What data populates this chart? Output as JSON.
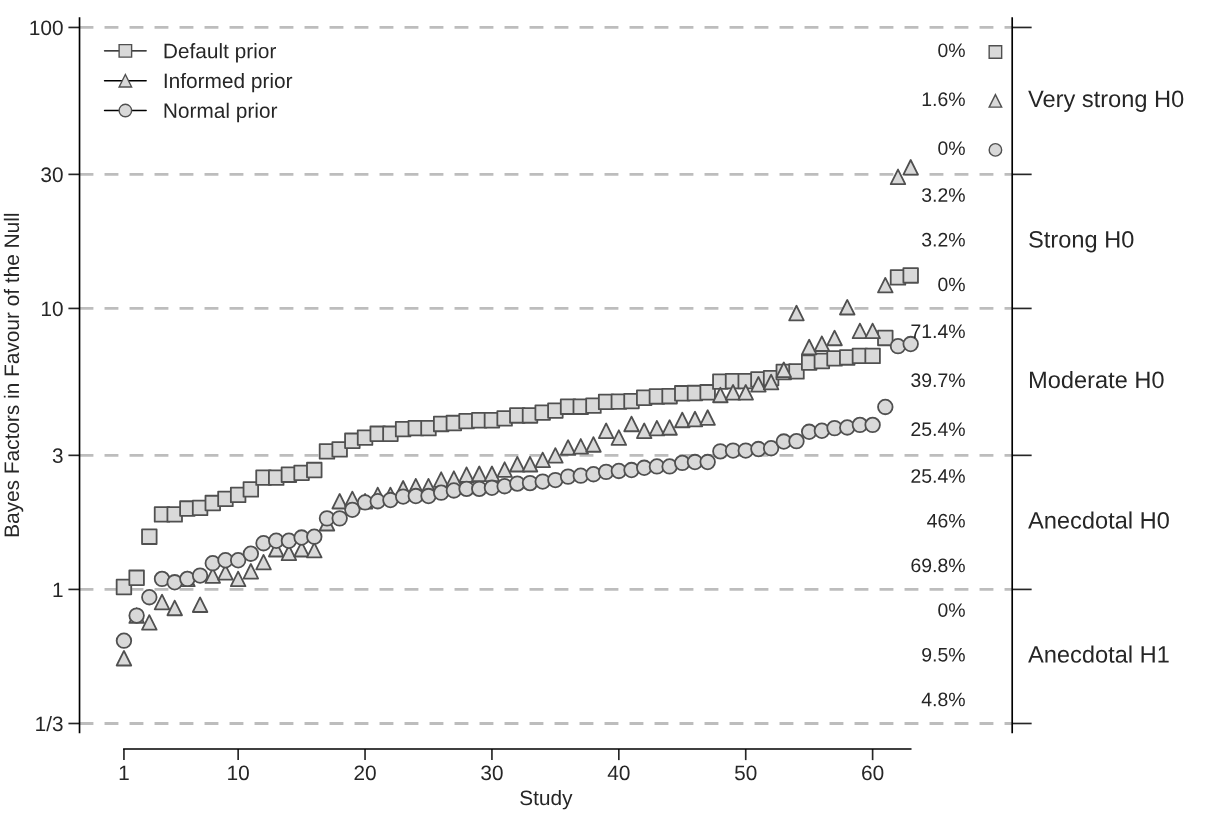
{
  "chart_data": {
    "type": "scatter",
    "xlabel": "Study",
    "ylabel": "Bayes Factors in Favour of the Null",
    "x": [
      1,
      2,
      3,
      4,
      5,
      6,
      7,
      8,
      9,
      10,
      11,
      12,
      13,
      14,
      15,
      16,
      17,
      18,
      19,
      20,
      21,
      22,
      23,
      24,
      25,
      26,
      27,
      28,
      29,
      30,
      31,
      32,
      33,
      34,
      35,
      36,
      37,
      38,
      39,
      40,
      41,
      42,
      43,
      44,
      45,
      46,
      47,
      48,
      49,
      50,
      51,
      52,
      53,
      54,
      55,
      56,
      57,
      58,
      59,
      60,
      61,
      62,
      63
    ],
    "series": [
      {
        "name": "Default prior",
        "color": "#d9d9d9",
        "marker": "square",
        "values": [
          1.02,
          1.1,
          1.54,
          1.85,
          1.85,
          1.94,
          1.95,
          2.03,
          2.1,
          2.17,
          2.27,
          2.5,
          2.5,
          2.56,
          2.6,
          2.66,
          3.1,
          3.15,
          3.38,
          3.47,
          3.58,
          3.58,
          3.72,
          3.75,
          3.75,
          3.88,
          3.91,
          3.97,
          4.0,
          4.0,
          4.06,
          4.16,
          4.16,
          4.26,
          4.33,
          4.47,
          4.47,
          4.51,
          4.65,
          4.66,
          4.68,
          4.81,
          4.86,
          4.87,
          4.99,
          5.0,
          5.03,
          5.49,
          5.51,
          5.51,
          5.59,
          5.65,
          5.94,
          5.97,
          6.42,
          6.5,
          6.64,
          6.69,
          6.78,
          6.78,
          7.85,
          12.9,
          13.1
        ]
      },
      {
        "name": "Informed prior",
        "color": "#d9d9d9",
        "marker": "triangle",
        "values": [
          0.569,
          0.807,
          0.763,
          0.902,
          0.859,
          1.09,
          0.882,
          1.12,
          1.15,
          1.09,
          1.16,
          1.25,
          1.39,
          1.35,
          1.39,
          1.38,
          1.72,
          2.06,
          2.1,
          2.06,
          2.17,
          2.17,
          2.29,
          2.33,
          2.33,
          2.46,
          2.48,
          2.56,
          2.58,
          2.58,
          2.67,
          2.79,
          2.79,
          2.89,
          3.0,
          3.2,
          3.23,
          3.28,
          3.67,
          3.47,
          3.88,
          3.67,
          3.75,
          3.77,
          4.01,
          4.04,
          4.09,
          4.92,
          5.03,
          5.03,
          5.37,
          5.47,
          6.05,
          9.63,
          7.29,
          7.49,
          7.85,
          10.1,
          8.32,
          8.32,
          12.1,
          29.4,
          31.8
        ]
      },
      {
        "name": "Normal prior",
        "color": "#d9d9d9",
        "marker": "circle",
        "values": [
          0.657,
          0.807,
          0.938,
          1.09,
          1.06,
          1.09,
          1.12,
          1.24,
          1.27,
          1.27,
          1.34,
          1.46,
          1.49,
          1.49,
          1.53,
          1.54,
          1.79,
          1.79,
          1.92,
          2.04,
          2.06,
          2.08,
          2.14,
          2.15,
          2.15,
          2.21,
          2.25,
          2.28,
          2.28,
          2.3,
          2.33,
          2.38,
          2.39,
          2.42,
          2.45,
          2.52,
          2.54,
          2.57,
          2.62,
          2.64,
          2.66,
          2.71,
          2.74,
          2.74,
          2.82,
          2.84,
          2.84,
          3.1,
          3.12,
          3.12,
          3.16,
          3.18,
          3.36,
          3.37,
          3.64,
          3.67,
          3.75,
          3.77,
          3.85,
          3.85,
          4.46,
          7.34,
          7.47
        ]
      }
    ],
    "xlim": [
      -2.5,
      71
    ],
    "xticks": [
      1,
      10,
      20,
      30,
      40,
      50,
      60
    ],
    "log": "y",
    "ylim": [
      0.31,
      108
    ],
    "yticks": [
      {
        "value": 0.3333,
        "label": "1/3"
      },
      1,
      3,
      10,
      30,
      100
    ],
    "ref_lines": [
      {
        "axis": "y",
        "value": 100,
        "color": "#bdbdbd",
        "line_style": "dashed"
      },
      {
        "axis": "y",
        "value": 30,
        "color": "#bdbdbd",
        "line_style": "dashed"
      },
      {
        "axis": "y",
        "value": 10,
        "color": "#bdbdbd",
        "line_style": "dashed"
      },
      {
        "axis": "y",
        "value": 3,
        "color": "#bdbdbd",
        "line_style": "dashed"
      },
      {
        "axis": "y",
        "value": 1,
        "color": "#bdbdbd",
        "line_style": "dashed"
      },
      {
        "axis": "y",
        "value": 0.3333,
        "color": "#bdbdbd",
        "line_style": "dashed"
      }
    ],
    "annotations": [
      "Very strong H0",
      "Strong H0",
      "Moderate H0",
      "Anecdotal H0",
      "Anecdotal H1",
      "0%",
      "1.6%",
      "0%",
      "3.2%",
      "3.2%",
      "0%",
      "71.4%",
      "39.7%",
      "25.4%",
      "25.4%",
      "46%",
      "69.8%",
      "0%",
      "9.5%",
      "4.8%"
    ],
    "legend": "top left",
    "grid": false
  }
}
